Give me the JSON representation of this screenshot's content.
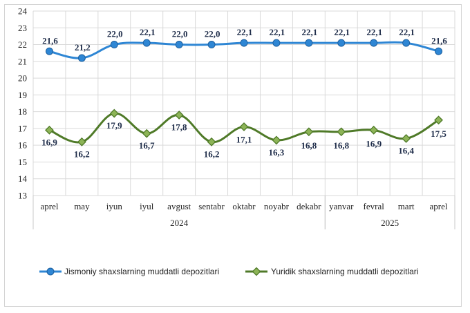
{
  "chart_data": {
    "type": "line",
    "categories": [
      "aprel",
      "may",
      "iyun",
      "iyul",
      "avgust",
      "sentabr",
      "oktabr",
      "noyabr",
      "dekabr",
      "yanvar",
      "fevral",
      "mart",
      "aprel"
    ],
    "year_groups": [
      {
        "label": "2024",
        "start": 0,
        "end": 8
      },
      {
        "label": "2025",
        "start": 9,
        "end": 12
      }
    ],
    "ylim": [
      13,
      24
    ],
    "yticks": [
      13,
      14,
      15,
      16,
      17,
      18,
      19,
      20,
      21,
      22,
      23,
      24
    ],
    "grid": true,
    "legend_position": "bottom",
    "series": [
      {
        "name": "Jismoniy shaxslarning muddatli depozitlari",
        "color": "#2e86d4",
        "marker": "circle",
        "values": [
          21.6,
          21.2,
          22.0,
          22.1,
          22.0,
          22.0,
          22.1,
          22.1,
          22.1,
          22.1,
          22.1,
          22.1,
          21.6
        ],
        "labels": [
          "21,6",
          "21,2",
          "22,0",
          "22,1",
          "22,0",
          "22,0",
          "22,1",
          "22,1",
          "22,1",
          "22,1",
          "22,1",
          "22,1",
          "21,6"
        ]
      },
      {
        "name": "Yuridik shaxslarning muddatli depozitlari",
        "color": "#4f7a28",
        "marker_fill": "#8db457",
        "marker": "diamond",
        "values": [
          16.9,
          16.2,
          17.9,
          16.7,
          17.8,
          16.2,
          17.1,
          16.3,
          16.8,
          16.8,
          16.9,
          16.4,
          17.5
        ],
        "labels": [
          "16,9",
          "16,2",
          "17,9",
          "16,7",
          "17,8",
          "16,2",
          "17,1",
          "16,3",
          "16,8",
          "16,8",
          "16,9",
          "16,4",
          "17,5"
        ]
      }
    ]
  }
}
